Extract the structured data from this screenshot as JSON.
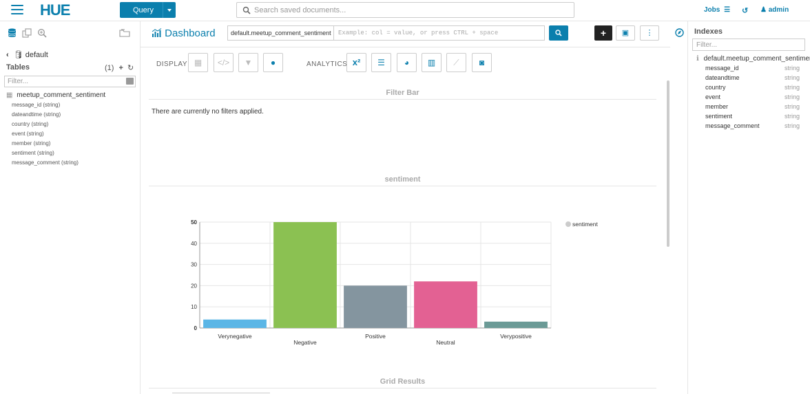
{
  "topbar": {
    "logo": "HUE",
    "query_button": "Query",
    "search_placeholder": "Search saved documents...",
    "jobs": "Jobs",
    "user": "admin"
  },
  "left_panel": {
    "database": "default",
    "tables_label": "Tables",
    "tables_count": "(1)",
    "filter_placeholder": "Filter...",
    "table_name": "meetup_comment_sentiment",
    "columns": [
      "message_id (string)",
      "dateandtime (string)",
      "country (string)",
      "event (string)",
      "member (string)",
      "sentiment (string)",
      "message_comment (string)"
    ]
  },
  "main": {
    "title": "Dashboard",
    "collection": "default.meetup_comment_sentiment",
    "query_placeholder": "Example: col = value, or press CTRL + space",
    "display_label": "DISPLAY",
    "analytics_label": "ANALYTICS",
    "filter_bar_title": "Filter Bar",
    "no_filters_text": "There are currently no filters applied.",
    "chart_widget_title": "sentiment",
    "grid_results_title": "Grid Results"
  },
  "chart_data": {
    "type": "bar",
    "categories": [
      "Verynegative",
      "Negative",
      "Positive",
      "Neutral",
      "Verypositive"
    ],
    "values": [
      4,
      50,
      20,
      22,
      3
    ],
    "colors": [
      "#5bb6e6",
      "#8bc152",
      "#84959f",
      "#e36193",
      "#6b9a96"
    ],
    "legend": "sentiment",
    "legend_position": "top-right",
    "ylim": [
      0,
      50
    ],
    "yticks": [
      "0",
      "10",
      "20",
      "30",
      "40",
      "50"
    ]
  },
  "right_panel": {
    "title": "Indexes",
    "filter_placeholder": "Filter...",
    "collection": "default.meetup_comment_sentimer",
    "fields": [
      {
        "name": "message_id",
        "type": "string"
      },
      {
        "name": "dateandtime",
        "type": "string"
      },
      {
        "name": "country",
        "type": "string"
      },
      {
        "name": "event",
        "type": "string"
      },
      {
        "name": "member",
        "type": "string"
      },
      {
        "name": "sentiment",
        "type": "string"
      },
      {
        "name": "message_comment",
        "type": "string"
      }
    ]
  },
  "colors": {
    "accent": "#0b7fad"
  }
}
